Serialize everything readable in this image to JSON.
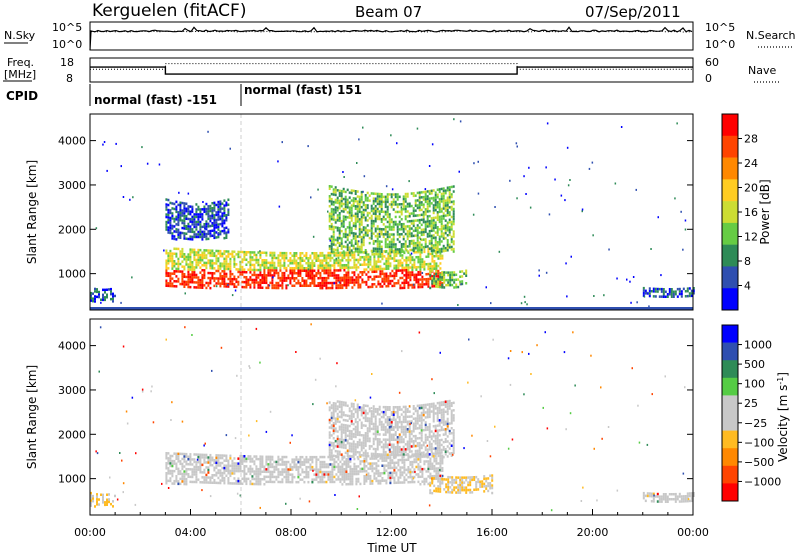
{
  "header": {
    "station": "Kerguelen (fitACF)",
    "beam": "Beam 07",
    "date": "07/Sep/2011"
  },
  "chart_data": [
    {
      "type": "line",
      "name": "noise-panel",
      "left_label": "N.Sky",
      "right_label": "N.Search",
      "left_ticks": [
        "10^5",
        "10^0"
      ],
      "right_ticks": [
        "10^5",
        "10^0"
      ],
      "series": [
        {
          "name": "N.Sky",
          "style": "solid"
        },
        {
          "name": "N.Search",
          "style": "dotted"
        }
      ]
    },
    {
      "type": "line",
      "name": "frequency-panel",
      "left_label_top": "Freq.",
      "left_label_bottom": "[MHz]",
      "right_label": "Nave",
      "left_ticks": [
        "18",
        "8"
      ],
      "right_ticks": [
        "60",
        "0"
      ],
      "ylim_left": [
        8,
        18
      ],
      "ylim_right": [
        0,
        60
      ],
      "x_hours": [
        0,
        3,
        3,
        17,
        17,
        24
      ],
      "freq_values": [
        14.2,
        14.2,
        11.3,
        11.3,
        14.2,
        14.2
      ],
      "nave_values": [
        32,
        32,
        46,
        46,
        32,
        32
      ]
    },
    {
      "type": "table",
      "name": "cpid-panel",
      "label": "CPID",
      "segments": [
        {
          "start_hour": 0,
          "end_hour": 6,
          "text": "normal (fast) -151"
        },
        {
          "start_hour": 6,
          "end_hour": 24,
          "text": "normal (fast) 151"
        }
      ]
    },
    {
      "type": "heatmap",
      "name": "power-panel",
      "ylabel": "Slant Range [km]",
      "colorbar_label": "Power [dB]",
      "xlim": [
        0,
        24
      ],
      "ylim": [
        180,
        4600
      ],
      "yticks": [
        1000,
        2000,
        3000,
        4000
      ],
      "colorbar_ticks": [
        "28",
        "24",
        "20",
        "16",
        "12",
        "8",
        "4"
      ],
      "colors": [
        "#0000ff",
        "#2f4fb0",
        "#2e8b57",
        "#66cc44",
        "#ccdd33",
        "#ffcc22",
        "#ff8800",
        "#ff4400",
        "#ff0000"
      ],
      "ground_scatter_range": 180,
      "features": [
        {
          "hours": [
            3.0,
            14.0
          ],
          "range_km": [
            700,
            1600
          ],
          "level": "high"
        },
        {
          "hours": [
            13.5,
            15.0
          ],
          "range_km": [
            700,
            1100
          ],
          "level": "medium"
        },
        {
          "hours": [
            3.0,
            5.5
          ],
          "range_km": [
            1800,
            2700
          ],
          "level": "low"
        },
        {
          "hours": [
            9.5,
            14.5
          ],
          "range_km": [
            1500,
            3000
          ],
          "level": "medium"
        },
        {
          "hours": [
            0.0,
            1.0
          ],
          "range_km": [
            400,
            700
          ],
          "level": "low"
        },
        {
          "hours": [
            22.0,
            24.0
          ],
          "range_km": [
            500,
            700
          ],
          "level": "low"
        }
      ]
    },
    {
      "type": "heatmap",
      "name": "velocity-panel",
      "ylabel": "Slant Range [km]",
      "colorbar_label": "Velocity [m s^-1]",
      "xlabel": "Time UT",
      "xlim": [
        0,
        24
      ],
      "ylim": [
        180,
        4600
      ],
      "yticks": [
        1000,
        2000,
        3000,
        4000
      ],
      "xticks": [
        "00:00",
        "04:00",
        "08:00",
        "12:00",
        "16:00",
        "20:00",
        "00:00"
      ],
      "colorbar_ticks": [
        "1000",
        "500",
        "100",
        "25",
        "−25",
        "−100",
        "−500",
        "−1000"
      ],
      "colors": [
        "#ff0000",
        "#ff4400",
        "#ff8800",
        "#ffbb22",
        "#c8c8c8",
        "#c8c8c8",
        "#55cc44",
        "#2e8b57",
        "#2f4fb0",
        "#0000ff"
      ],
      "features": [
        {
          "hours": [
            3.0,
            14.0
          ],
          "range_km": [
            900,
            1600
          ],
          "value": "ground"
        },
        {
          "hours": [
            9.5,
            14.5
          ],
          "range_km": [
            1500,
            2800
          ],
          "value": "ground"
        },
        {
          "hours": [
            13.5,
            16.0
          ],
          "range_km": [
            700,
            1100
          ],
          "value": "negative"
        },
        {
          "hours": [
            0.0,
            1.0
          ],
          "range_km": [
            400,
            700
          ],
          "value": "negative"
        },
        {
          "hours": [
            22.0,
            24.0
          ],
          "range_km": [
            500,
            700
          ],
          "value": "ground"
        }
      ]
    }
  ]
}
